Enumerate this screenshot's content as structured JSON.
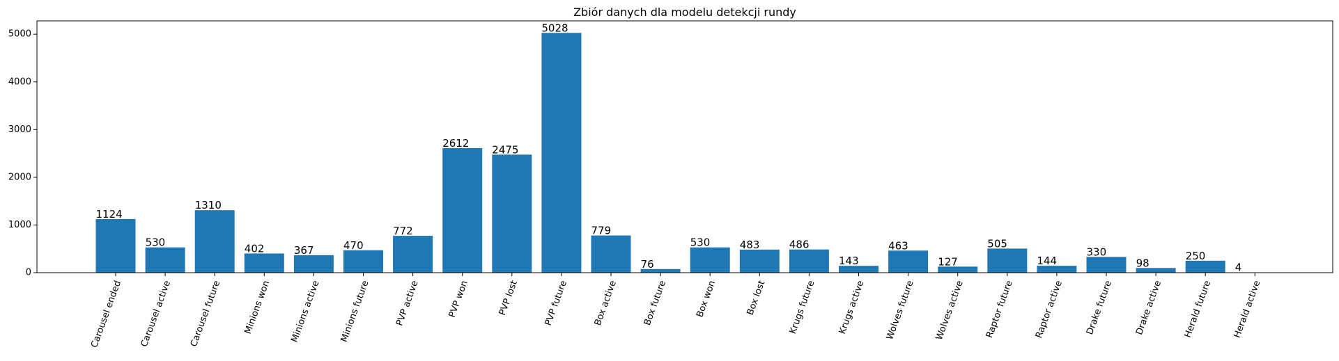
{
  "chart_data": {
    "type": "bar",
    "title": "Zbiór danych dla modelu detekcji rundy",
    "xlabel": "",
    "ylabel": "",
    "ylim": [
      0,
      5280
    ],
    "yticks": [
      0,
      1000,
      2000,
      3000,
      4000,
      5000
    ],
    "xtick_rotation": 70,
    "grid": false,
    "bar_color": "#1f77b4",
    "categories": [
      "Carousel ended",
      "Carousel active",
      "Carousel future",
      "Minions won",
      "Minions active",
      "Minions future",
      "PVP active",
      "PVP won",
      "PVP lost",
      "PVP future",
      "Box active",
      "Box future",
      "Box won",
      "Box lost",
      "Krugs future",
      "Krugs active",
      "Wolves future",
      "Wolves active",
      "Raptor future",
      "Raptor active",
      "Drake future",
      "Drake active",
      "Herald future",
      "Herald active"
    ],
    "values": [
      1124,
      530,
      1310,
      402,
      367,
      470,
      772,
      2612,
      2475,
      5028,
      779,
      76,
      530,
      483,
      486,
      143,
      463,
      127,
      505,
      144,
      330,
      98,
      250,
      4
    ]
  }
}
